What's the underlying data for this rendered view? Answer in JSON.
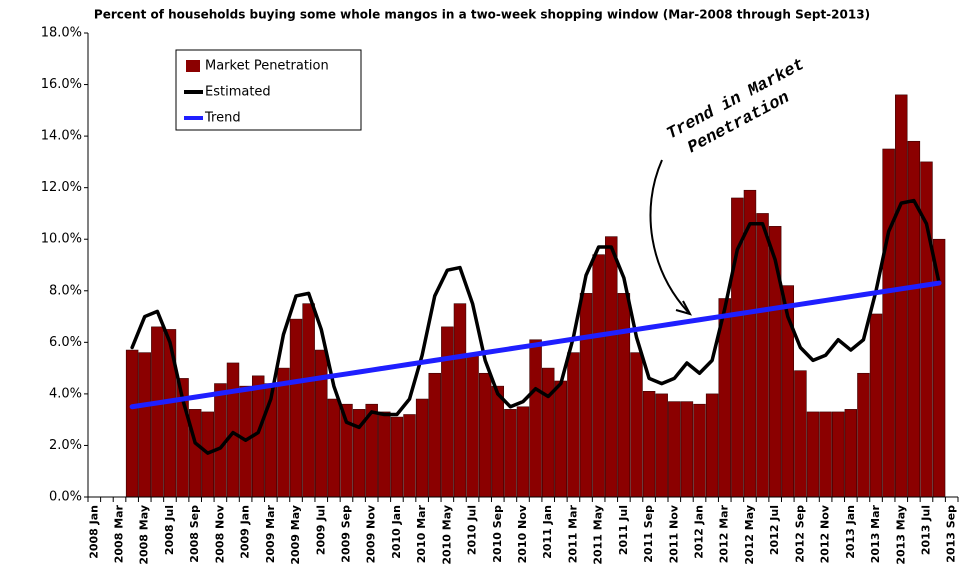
{
  "chart_data": {
    "type": "bar",
    "title": "Percent of households buying some whole mangos in a two-week shopping window (Mar-2008 through Sept-2013)",
    "annotation": [
      "Trend in Market",
      "Penetration"
    ],
    "categories": [
      "2008 Jan",
      null,
      "2008 Mar",
      null,
      "2008 May",
      null,
      "2008 Jul",
      null,
      "2008 Sep",
      null,
      "2008 Nov",
      null,
      "2009 Jan",
      null,
      "2009 Mar",
      null,
      "2009 May",
      null,
      "2009 Jul",
      null,
      "2009 Sep",
      null,
      "2009 Nov",
      null,
      "2010 Jan",
      null,
      "2010 Mar",
      null,
      "2010 May",
      null,
      "2010 Jul",
      null,
      "2010 Sep",
      null,
      "2010 Nov",
      null,
      "2011 Jan",
      null,
      "2011 Mar",
      null,
      "2011 May",
      null,
      "2011 Jul",
      null,
      "2011 Sep",
      null,
      "2011 Nov",
      null,
      "2012 Jan",
      null,
      "2012 Mar",
      null,
      "2012 May",
      null,
      "2012 Jul",
      null,
      "2012 Sep",
      null,
      "2012 Nov",
      null,
      "2013 Jan",
      null,
      "2013 Mar",
      null,
      "2013 May",
      null,
      "2013 Jul",
      null,
      "2013 Sep"
    ],
    "series": [
      {
        "name": "Market Penetration",
        "type": "bar",
        "color": "#8b0000",
        "values": [
          null,
          null,
          null,
          5.7,
          5.6,
          6.6,
          6.5,
          4.6,
          3.4,
          3.3,
          4.4,
          5.2,
          4.3,
          4.7,
          4.4,
          5.0,
          6.9,
          7.5,
          5.7,
          3.8,
          3.6,
          3.4,
          3.6,
          3.3,
          3.1,
          3.2,
          3.8,
          4.8,
          6.6,
          7.5,
          5.5,
          4.8,
          4.3,
          3.4,
          3.5,
          6.1,
          5.0,
          4.5,
          5.6,
          7.9,
          9.4,
          10.1,
          7.9,
          5.6,
          4.1,
          4.0,
          3.7,
          3.7,
          3.6,
          4.0,
          7.7,
          11.6,
          11.9,
          11.0,
          10.5,
          8.2,
          4.9,
          3.3,
          3.3,
          3.3,
          3.4,
          4.8,
          7.1,
          13.5,
          15.6,
          13.8,
          13.0,
          10.0,
          null
        ]
      },
      {
        "name": "Estimated",
        "type": "line",
        "color": "#000000",
        "values": [
          null,
          null,
          null,
          5.8,
          7.0,
          7.2,
          6.0,
          3.8,
          2.1,
          1.7,
          1.9,
          2.5,
          2.2,
          2.5,
          3.8,
          6.3,
          7.8,
          7.9,
          6.5,
          4.3,
          2.9,
          2.7,
          3.3,
          3.2,
          3.2,
          3.8,
          5.5,
          7.8,
          8.8,
          8.9,
          7.5,
          5.3,
          4.0,
          3.5,
          3.7,
          4.2,
          3.9,
          4.4,
          6.2,
          8.6,
          9.7,
          9.7,
          8.5,
          6.2,
          4.6,
          4.4,
          4.6,
          5.2,
          4.8,
          5.3,
          7.3,
          9.6,
          10.6,
          10.6,
          9.2,
          7.0,
          5.8,
          5.3,
          5.5,
          6.1,
          5.7,
          6.1,
          8.0,
          10.3,
          11.4,
          11.5,
          10.6,
          8.3,
          null
        ]
      },
      {
        "name": "Trend",
        "type": "line",
        "color": "#1f1fff",
        "values": [
          null,
          null,
          null,
          3.5,
          3.575,
          3.65,
          3.725,
          3.8,
          3.875,
          3.95,
          4.025,
          4.1,
          4.175,
          4.25,
          4.325,
          4.4,
          4.475,
          4.55,
          4.625,
          4.7,
          4.775,
          4.85,
          4.925,
          5.0,
          5.075,
          5.15,
          5.225,
          5.3,
          5.375,
          5.45,
          5.525,
          5.6,
          5.675,
          5.75,
          5.825,
          5.9,
          5.975,
          6.05,
          6.125,
          6.2,
          6.275,
          6.35,
          6.425,
          6.5,
          6.575,
          6.65,
          6.725,
          6.8,
          6.875,
          6.95,
          7.025,
          7.1,
          7.175,
          7.25,
          7.325,
          7.4,
          7.475,
          7.55,
          7.625,
          7.7,
          7.775,
          7.85,
          7.925,
          8.0,
          8.075,
          8.15,
          8.225,
          8.3,
          null
        ]
      }
    ],
    "ylim": [
      0,
      18
    ],
    "yticks": [
      {
        "value": 0,
        "label": "0.0%"
      },
      {
        "value": 2,
        "label": "2.0%"
      },
      {
        "value": 4,
        "label": "4.0%"
      },
      {
        "value": 6,
        "label": "6.0%"
      },
      {
        "value": 8,
        "label": "8.0%"
      },
      {
        "value": 10,
        "label": "10.0%"
      },
      {
        "value": 12,
        "label": "12.0%"
      },
      {
        "value": 14,
        "label": "14.0%"
      },
      {
        "value": 16,
        "label": "16.0%"
      },
      {
        "value": 18,
        "label": "18.0%"
      }
    ],
    "grid": false,
    "legend": "upper left"
  }
}
